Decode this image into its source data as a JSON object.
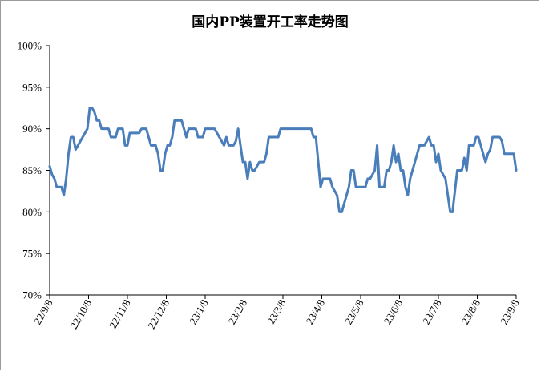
{
  "chart_data": {
    "type": "line",
    "title": "国内PP装置开工率走势图",
    "xlabel": "",
    "ylabel": "",
    "ylim": [
      70,
      100
    ],
    "y_ticks": [
      70,
      75,
      80,
      85,
      90,
      95,
      100
    ],
    "y_tick_labels": [
      "70%",
      "75%",
      "80%",
      "85%",
      "90%",
      "95%",
      "100%"
    ],
    "x_tick_labels": [
      "22/9/8",
      "22/10/8",
      "22/11/8",
      "22/12/8",
      "23/1/8",
      "23/2/8",
      "23/3/8",
      "23/4/8",
      "23/5/8",
      "23/6/8",
      "23/7/8",
      "23/8/8",
      "23/9/8"
    ],
    "grid": false,
    "legend": "none",
    "line_color": "#4a7ebb",
    "series": [
      {
        "values": [
          85.5,
          84.5,
          84,
          83,
          83,
          83,
          82,
          84,
          87,
          89,
          89,
          87.5,
          88,
          88.5,
          89,
          89.5,
          90,
          92.5,
          92.5,
          92,
          91,
          91,
          90,
          90,
          90,
          90,
          89,
          89,
          89,
          90,
          90,
          90,
          88,
          88,
          89.5,
          89.5,
          89.5,
          89.5,
          89.5,
          90,
          90,
          90,
          89,
          88,
          88,
          88,
          87,
          85,
          85,
          87,
          88,
          88,
          89,
          91,
          91,
          91,
          91,
          90,
          89,
          90,
          90,
          90,
          90,
          89,
          89,
          89,
          90,
          90,
          90,
          90,
          90,
          89.5,
          89,
          88.5,
          88,
          89,
          88,
          88,
          88,
          88.5,
          90,
          88,
          86,
          86,
          84,
          86,
          85,
          85,
          85.5,
          86,
          86,
          86,
          87,
          89,
          89,
          89,
          89,
          89,
          90,
          90,
          90,
          90,
          90,
          90,
          90,
          90,
          90,
          90,
          90,
          90,
          90,
          90,
          89,
          89,
          86,
          83,
          84,
          84,
          84,
          84,
          83,
          82.5,
          82,
          80,
          80,
          81,
          82,
          83,
          85,
          85,
          83,
          83,
          83,
          83,
          83,
          84,
          84,
          84.5,
          85,
          88,
          83,
          83,
          83,
          85,
          85,
          86,
          88,
          86,
          87,
          85,
          85,
          83,
          82,
          84,
          85,
          86,
          87,
          88,
          88,
          88,
          88.5,
          89,
          88,
          88,
          86,
          87,
          85,
          84.5,
          84,
          82,
          80,
          80,
          82.5,
          85,
          85,
          85,
          86.5,
          85,
          88,
          88,
          88,
          89,
          89,
          88,
          87,
          86,
          87,
          87.5,
          89,
          89,
          89,
          89,
          88.5,
          87,
          87,
          87,
          87,
          87,
          85
        ]
      }
    ]
  }
}
